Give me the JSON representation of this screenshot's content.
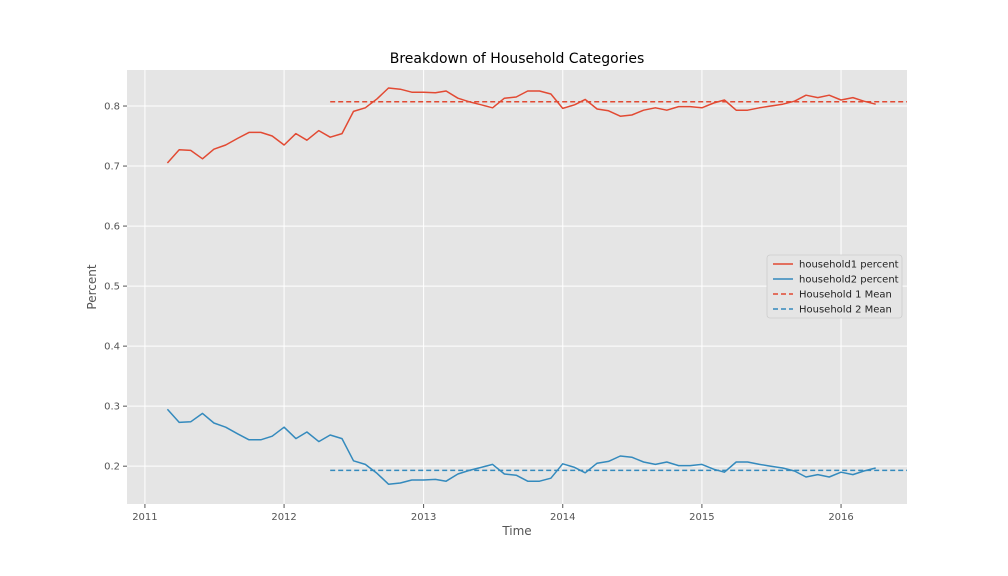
{
  "chart_data": {
    "type": "line",
    "title": "Breakdown of Household Categories",
    "xlabel": "Time",
    "ylabel": "Percent",
    "x_ticks": [
      "2011",
      "2012",
      "2013",
      "2014",
      "2015",
      "2016"
    ],
    "y_ticks": [
      "0.2",
      "0.3",
      "0.4",
      "0.5",
      "0.6",
      "0.7",
      "0.8"
    ],
    "xlim": [
      "2010-11-15",
      "2016-06-22"
    ],
    "ylim": [
      0.137,
      0.86
    ],
    "grid": true,
    "legend_position": "center-right",
    "x": [
      "2011-03",
      "2011-04",
      "2011-05",
      "2011-06",
      "2011-07",
      "2011-08",
      "2011-09",
      "2011-10",
      "2011-11",
      "2011-12",
      "2012-01",
      "2012-02",
      "2012-03",
      "2012-04",
      "2012-05",
      "2012-06",
      "2012-07",
      "2012-08",
      "2012-09",
      "2012-10",
      "2012-11",
      "2012-12",
      "2013-01",
      "2013-02",
      "2013-03",
      "2013-04",
      "2013-05",
      "2013-06",
      "2013-07",
      "2013-08",
      "2013-09",
      "2013-10",
      "2013-11",
      "2013-12",
      "2014-01",
      "2014-02",
      "2014-03",
      "2014-04",
      "2014-05",
      "2014-06",
      "2014-07",
      "2014-08",
      "2014-09",
      "2014-10",
      "2014-11",
      "2014-12",
      "2015-01",
      "2015-02",
      "2015-03",
      "2015-04",
      "2015-05",
      "2015-06",
      "2015-07",
      "2015-08",
      "2015-09",
      "2015-10",
      "2015-11",
      "2015-12",
      "2016-01",
      "2016-02",
      "2016-03",
      "2016-04"
    ],
    "series": [
      {
        "name": "household1 percent",
        "color": "#e24a33",
        "style": "solid",
        "values": [
          0.705,
          0.727,
          0.726,
          0.712,
          0.728,
          0.735,
          0.746,
          0.756,
          0.756,
          0.75,
          0.735,
          0.754,
          0.743,
          0.759,
          0.748,
          0.754,
          0.791,
          0.797,
          0.812,
          0.83,
          0.828,
          0.823,
          0.823,
          0.822,
          0.825,
          0.813,
          0.807,
          0.802,
          0.797,
          0.813,
          0.815,
          0.825,
          0.825,
          0.82,
          0.796,
          0.802,
          0.811,
          0.795,
          0.792,
          0.783,
          0.785,
          0.793,
          0.797,
          0.793,
          0.799,
          0.799,
          0.797,
          0.805,
          0.81,
          0.793,
          0.793,
          0.797,
          0.8,
          0.803,
          0.808,
          0.818,
          0.814,
          0.818,
          0.81,
          0.814,
          0.808,
          0.803
        ]
      },
      {
        "name": "household2 percent",
        "color": "#348abd",
        "style": "solid",
        "values": [
          0.295,
          0.273,
          0.274,
          0.288,
          0.272,
          0.265,
          0.254,
          0.244,
          0.244,
          0.25,
          0.265,
          0.246,
          0.257,
          0.241,
          0.252,
          0.246,
          0.209,
          0.203,
          0.188,
          0.17,
          0.172,
          0.177,
          0.177,
          0.178,
          0.175,
          0.187,
          0.193,
          0.198,
          0.203,
          0.187,
          0.185,
          0.175,
          0.175,
          0.18,
          0.204,
          0.198,
          0.189,
          0.205,
          0.208,
          0.217,
          0.215,
          0.207,
          0.203,
          0.207,
          0.201,
          0.201,
          0.203,
          0.195,
          0.19,
          0.207,
          0.207,
          0.203,
          0.2,
          0.197,
          0.192,
          0.182,
          0.186,
          0.182,
          0.19,
          0.186,
          0.192,
          0.197
        ]
      },
      {
        "name": "Household 1 Mean",
        "color": "#e24a33",
        "style": "dashed",
        "x": [
          "2012-05-01",
          "2016-06-22"
        ],
        "values": [
          0.807,
          0.807
        ]
      },
      {
        "name": "Household 2 Mean",
        "color": "#348abd",
        "style": "dashed",
        "x": [
          "2012-05-01",
          "2016-06-22"
        ],
        "values": [
          0.193,
          0.193
        ]
      }
    ]
  }
}
